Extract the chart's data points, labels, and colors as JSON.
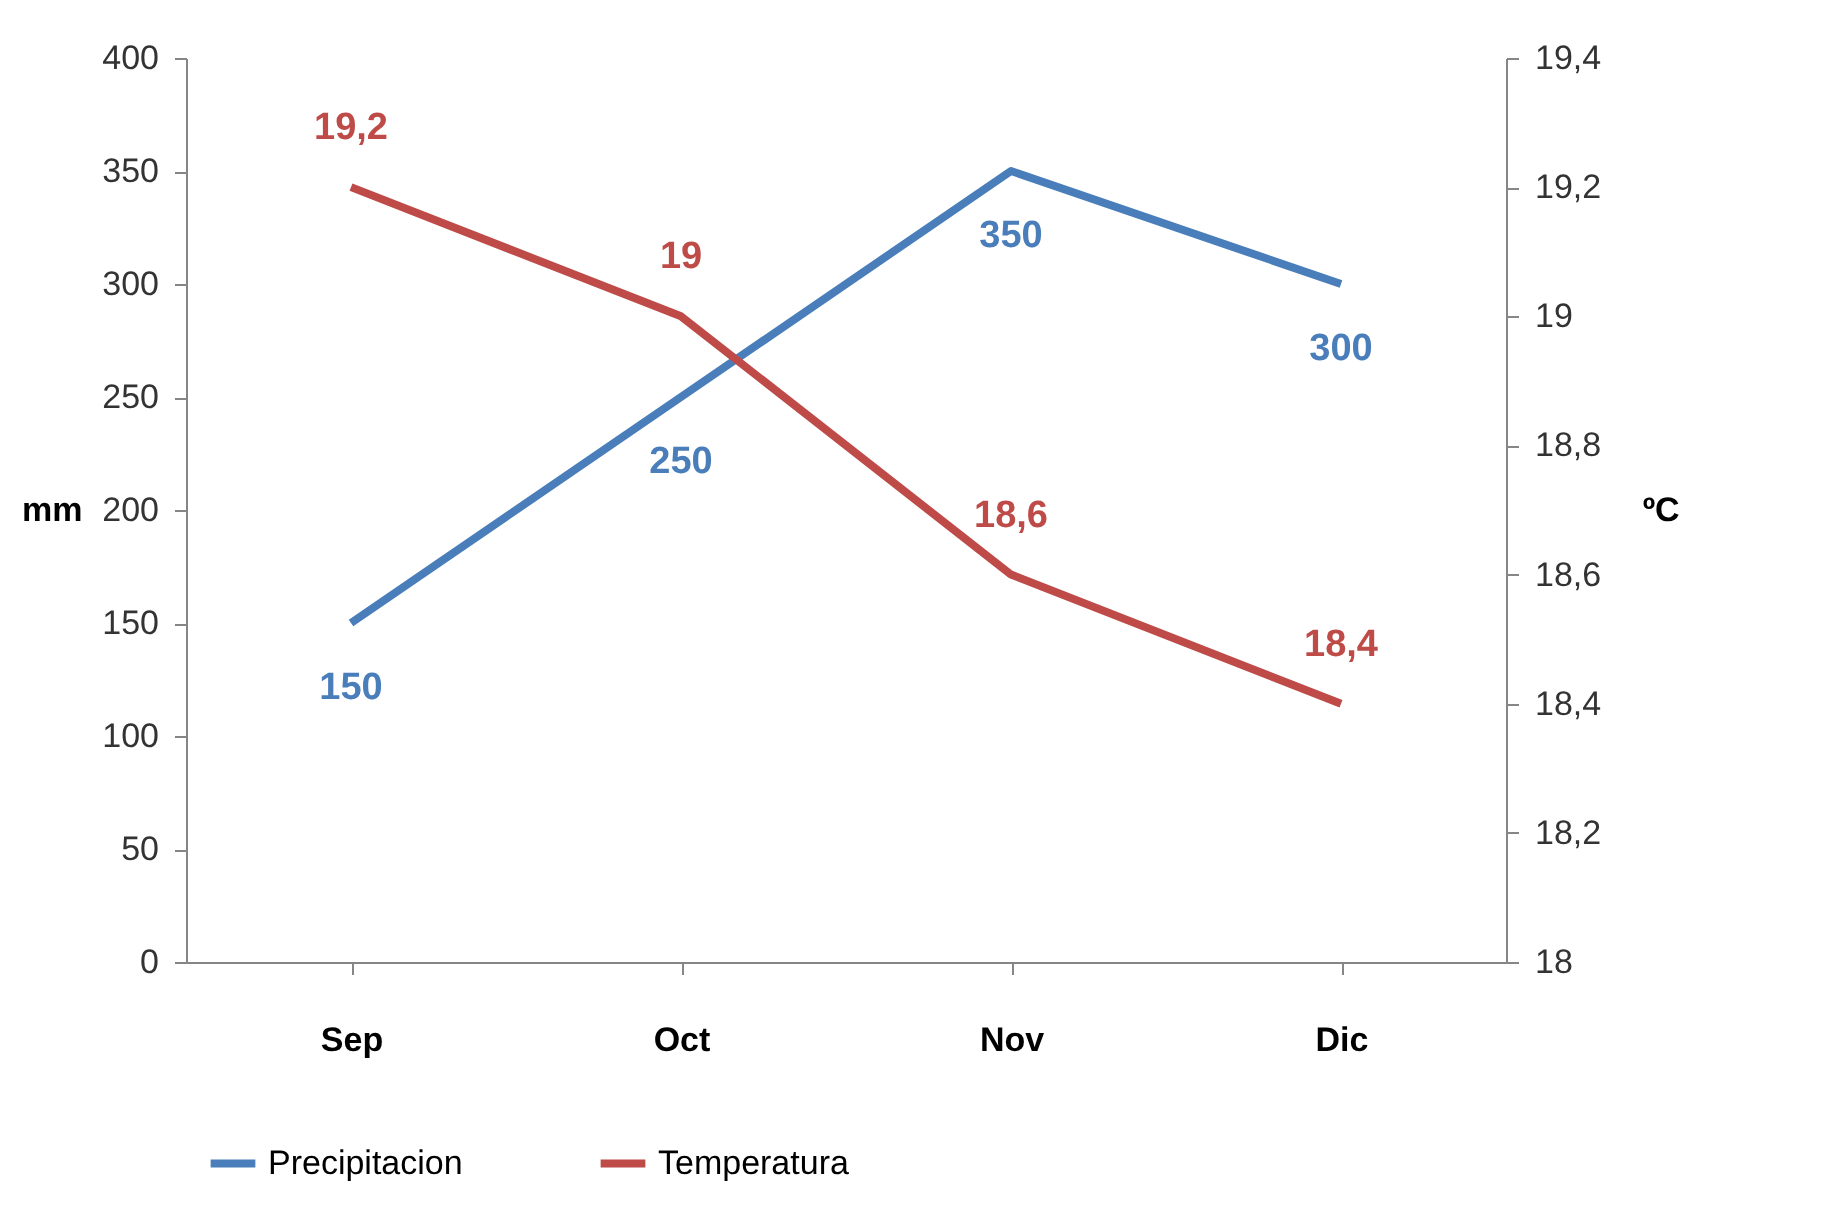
{
  "chart_data": {
    "type": "line",
    "categories": [
      "Sep",
      "Oct",
      "Nov",
      "Dic"
    ],
    "ylabel": "mm",
    "y2label": "ºC",
    "ylim": [
      0,
      400
    ],
    "yticks": [
      0,
      50,
      100,
      150,
      200,
      250,
      300,
      350,
      400
    ],
    "y2lim": [
      18,
      19.4
    ],
    "y2ticks": [
      18,
      {
        "value": 18.2,
        "label": "18,2"
      },
      {
        "value": 18.4,
        "label": "18,4"
      },
      {
        "value": 18.6,
        "label": "18,6"
      },
      {
        "value": 18.8,
        "label": "18,8"
      },
      19,
      {
        "value": 19.2,
        "label": "19,2"
      },
      {
        "value": 19.4,
        "label": "19,4"
      }
    ],
    "series": [
      {
        "name": "Precipitacion",
        "color": "#4a7ebb",
        "values": [
          150,
          250,
          350,
          300
        ],
        "value_labels": [
          "150",
          "250",
          "350",
          "300"
        ]
      },
      {
        "name": "Temperatura",
        "color": "#be4b48",
        "values": [
          19.2,
          19,
          18.6,
          18.4
        ],
        "value_labels": [
          "19,2",
          "19",
          "18,6",
          "18,4"
        ],
        "axis": "y2"
      }
    ],
    "legend": "bottom",
    "grid": false,
    "marker": "none",
    "line_style": "solid"
  }
}
